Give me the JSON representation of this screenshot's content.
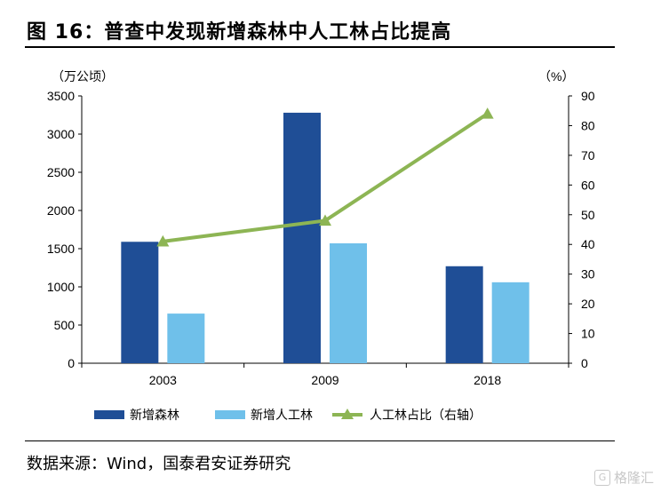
{
  "figure_title": "图 16：普查中发现新增森林中人工林占比提高",
  "source_text": "数据来源：Wind，国泰君安证券研究",
  "watermark_text": "格隆汇",
  "chart_data": {
    "type": "bar",
    "categories": [
      "2003",
      "2009",
      "2018"
    ],
    "left_unit": "（万公顷）",
    "right_unit": "（%）",
    "ylim_left": [
      0,
      3500
    ],
    "yticks_left": [
      0,
      500,
      1000,
      1500,
      2000,
      2500,
      3000,
      3500
    ],
    "ylim_right": [
      0,
      90
    ],
    "yticks_right": [
      0,
      10,
      20,
      30,
      40,
      50,
      60,
      70,
      80,
      90
    ],
    "series": [
      {
        "name": "新增森林",
        "kind": "bar",
        "color": "#1f4e96",
        "values": [
          1590,
          3280,
          1270
        ]
      },
      {
        "name": "新增人工林",
        "kind": "bar",
        "color": "#6fc0ea",
        "values": [
          650,
          1570,
          1060
        ]
      },
      {
        "name": "人工林占比（右轴）",
        "kind": "line",
        "axis": "right",
        "color": "#8db554",
        "values": [
          41,
          48,
          84
        ]
      }
    ],
    "grid": false,
    "legend_position": "bottom"
  }
}
